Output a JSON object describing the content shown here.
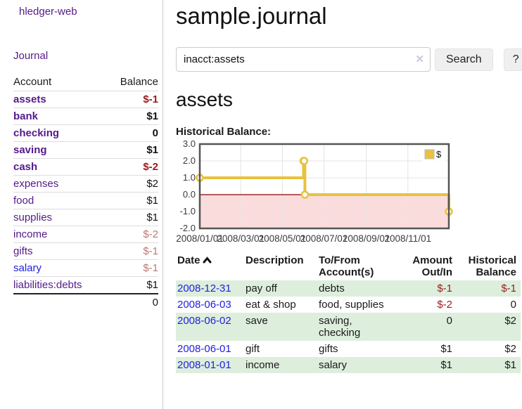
{
  "app": {
    "brand": "hledger-web",
    "nav": {
      "journal": "Journal"
    }
  },
  "sidebar": {
    "headers": {
      "account": "Account",
      "balance": "Balance"
    },
    "accounts": [
      {
        "name": "assets",
        "indent": 1,
        "bold": true,
        "balance": "$-1",
        "balance_style": "neg-strong"
      },
      {
        "name": "bank",
        "indent": 2,
        "bold": true,
        "balance": "$1",
        "balance_style": "pos-strong"
      },
      {
        "name": "checking",
        "indent": 3,
        "bold": true,
        "balance": "0",
        "balance_style": "pos-strong"
      },
      {
        "name": "saving",
        "indent": 3,
        "bold": true,
        "balance": "$1",
        "balance_style": "pos-strong"
      },
      {
        "name": "cash",
        "indent": 2,
        "bold": true,
        "balance": "$-2",
        "balance_style": "neg-strong"
      },
      {
        "name": "expenses",
        "indent": 1,
        "bold": false,
        "balance": "$2",
        "balance_style": "pos"
      },
      {
        "name": "food",
        "indent": 2,
        "bold": false,
        "balance": "$1",
        "balance_style": "pos"
      },
      {
        "name": "supplies",
        "indent": 2,
        "bold": false,
        "balance": "$1",
        "balance_style": "pos"
      },
      {
        "name": "income",
        "indent": 1,
        "bold": false,
        "balance": "$-2",
        "balance_style": "neg-faded"
      },
      {
        "name": "gifts",
        "indent": 2,
        "bold": false,
        "balance": "$-1",
        "balance_style": "neg-faded"
      },
      {
        "name": "salary",
        "indent": 2,
        "bold": false,
        "link_style": "unvisited",
        "balance": "$-1",
        "balance_style": "neg-faded"
      },
      {
        "name": "liabilities:debts",
        "indent": 1,
        "bold": false,
        "balance": "$1",
        "balance_style": "pos"
      }
    ],
    "total": "0"
  },
  "header": {
    "title": "sample.journal"
  },
  "search": {
    "value": "inacct:assets",
    "clear_icon": "✕",
    "button_label": "Search",
    "help_label": "?"
  },
  "account_page": {
    "heading": "assets",
    "chart_label": "Historical Balance:"
  },
  "chart_data": {
    "type": "line",
    "step": true,
    "title": "Historical Balance:",
    "legend": [
      {
        "label": "$",
        "color": "#e8c240"
      }
    ],
    "legend_position": "top-right",
    "series": [
      {
        "name": "$",
        "color": "#e8c240",
        "points": [
          [
            "2008-01-01",
            1
          ],
          [
            "2008-06-01",
            2
          ],
          [
            "2008-06-02",
            2
          ],
          [
            "2008-06-03",
            0
          ],
          [
            "2008-12-31",
            -1
          ]
        ]
      }
    ],
    "x_range": [
      "2008-01-01",
      "2008-12-31"
    ],
    "ylim": [
      -2,
      3
    ],
    "y_ticks": [
      "3.0",
      "2.0",
      "1.0",
      "0.0",
      "-1.0",
      "-2.0"
    ],
    "x_ticks": [
      "2008/01/01",
      "2008/03/01",
      "2008/05/01",
      "2008/07/01",
      "2008/09/01",
      "2008/11/01"
    ],
    "grid": true,
    "negative_region_fill": "#fbdcdc",
    "zero_line_color": "#8b0000",
    "grid_color": "#e4e4e4",
    "border_color": "#555555"
  },
  "register": {
    "headers": {
      "date": "Date",
      "description": "Description",
      "account": "To/From Account(s)",
      "amount": "Amount Out/In",
      "balance": "Historical Balance"
    },
    "rows": [
      {
        "date": "2008-12-31",
        "description": "pay off",
        "accounts": "debts",
        "amount": "$-1",
        "amount_negative": true,
        "balance": "$-1",
        "balance_negative": true,
        "shaded": true
      },
      {
        "date": "2008-06-03",
        "description": "eat & shop",
        "accounts": "food, supplies",
        "amount": "$-2",
        "amount_negative": true,
        "balance": "0",
        "balance_negative": false,
        "shaded": false
      },
      {
        "date": "2008-06-02",
        "description": "save",
        "accounts": "saving, checking",
        "amount": "0",
        "amount_negative": false,
        "balance": "$2",
        "balance_negative": false,
        "shaded": true
      },
      {
        "date": "2008-06-01",
        "description": "gift",
        "accounts": "gifts",
        "amount": "$1",
        "amount_negative": false,
        "balance": "$2",
        "balance_negative": false,
        "shaded": false
      },
      {
        "date": "2008-01-01",
        "description": "income",
        "accounts": "salary",
        "amount": "$1",
        "amount_negative": false,
        "balance": "$1",
        "balance_negative": false,
        "shaded": true
      }
    ]
  },
  "colors": {
    "link_visited_purple": "#551a8b",
    "link_blue": "#2121de",
    "negative_red": "#9b1c1c",
    "negative_faded": "#bf7676",
    "row_stripe_green": "#ddeedd",
    "chart_line_gold": "#e8c240"
  }
}
